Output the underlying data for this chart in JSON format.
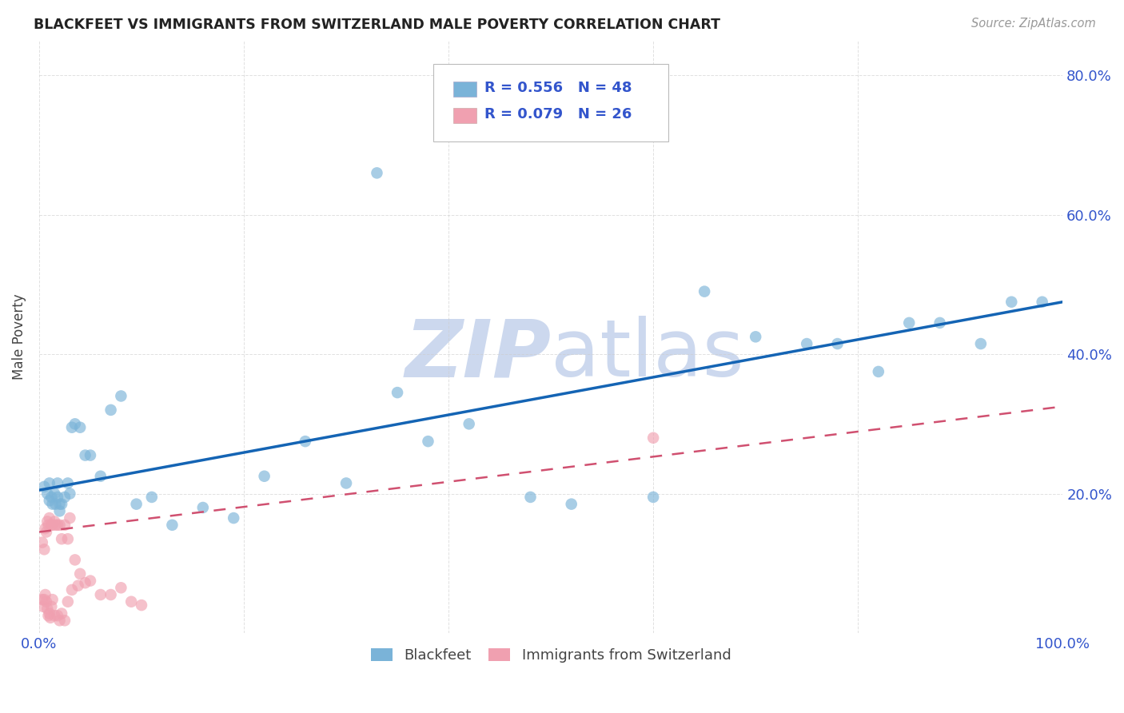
{
  "title": "BLACKFEET VS IMMIGRANTS FROM SWITZERLAND MALE POVERTY CORRELATION CHART",
  "source": "Source: ZipAtlas.com",
  "ylabel": "Male Poverty",
  "xlim": [
    0,
    1.0
  ],
  "ylim": [
    0,
    0.85
  ],
  "xtick_positions": [
    0.0,
    0.2,
    0.4,
    0.6,
    0.8,
    1.0
  ],
  "xticklabels": [
    "0.0%",
    "",
    "",
    "",
    "",
    "100.0%"
  ],
  "ytick_positions": [
    0.0,
    0.2,
    0.4,
    0.6,
    0.8
  ],
  "yticklabels": [
    "",
    "20.0%",
    "40.0%",
    "60.0%",
    "80.0%"
  ],
  "blackfeet_color": "#7ab3d8",
  "swiss_color": "#f0a0b0",
  "blue_line_color": "#1464b4",
  "pink_line_color": "#d05070",
  "blackfeet_R": 0.556,
  "blackfeet_N": 48,
  "swiss_R": 0.079,
  "swiss_N": 26,
  "legend_color": "#3355cc",
  "tick_color": "#3355cc",
  "background_color": "#ffffff",
  "grid_color": "#cccccc",
  "watermark_color": "#ccd8ee",
  "blackfeet_x": [
    0.005,
    0.008,
    0.01,
    0.01,
    0.012,
    0.013,
    0.015,
    0.016,
    0.018,
    0.018,
    0.02,
    0.02,
    0.022,
    0.025,
    0.028,
    0.03,
    0.032,
    0.035,
    0.04,
    0.045,
    0.05,
    0.06,
    0.07,
    0.08,
    0.095,
    0.11,
    0.13,
    0.16,
    0.19,
    0.22,
    0.26,
    0.3,
    0.35,
    0.38,
    0.42,
    0.48,
    0.52,
    0.6,
    0.65,
    0.7,
    0.75,
    0.78,
    0.82,
    0.85,
    0.88,
    0.92,
    0.95,
    0.98
  ],
  "blackfeet_y": [
    0.21,
    0.2,
    0.19,
    0.215,
    0.195,
    0.185,
    0.2,
    0.185,
    0.195,
    0.215,
    0.185,
    0.175,
    0.185,
    0.195,
    0.215,
    0.2,
    0.295,
    0.3,
    0.295,
    0.255,
    0.255,
    0.225,
    0.32,
    0.34,
    0.185,
    0.195,
    0.155,
    0.18,
    0.165,
    0.225,
    0.275,
    0.215,
    0.345,
    0.275,
    0.3,
    0.195,
    0.185,
    0.195,
    0.49,
    0.425,
    0.415,
    0.415,
    0.375,
    0.445,
    0.445,
    0.415,
    0.475,
    0.475
  ],
  "blackfeet_outlier_x": [
    0.33
  ],
  "blackfeet_outlier_y": [
    0.66
  ],
  "swiss_x": [
    0.003,
    0.005,
    0.006,
    0.007,
    0.008,
    0.009,
    0.01,
    0.012,
    0.013,
    0.015,
    0.016,
    0.018,
    0.02,
    0.022,
    0.025,
    0.028,
    0.03,
    0.035,
    0.04,
    0.05,
    0.06,
    0.07,
    0.08,
    0.09,
    0.1,
    0.6
  ],
  "swiss_y": [
    0.13,
    0.12,
    0.15,
    0.145,
    0.16,
    0.155,
    0.165,
    0.155,
    0.155,
    0.16,
    0.155,
    0.155,
    0.155,
    0.135,
    0.155,
    0.135,
    0.165,
    0.105,
    0.085,
    0.075,
    0.055,
    0.055,
    0.065,
    0.045,
    0.04,
    0.28
  ],
  "swiss_low_x": [
    0.003,
    0.004,
    0.005,
    0.006,
    0.007,
    0.008,
    0.009,
    0.01,
    0.011,
    0.012,
    0.013,
    0.015,
    0.018,
    0.02,
    0.022,
    0.025,
    0.028,
    0.032,
    0.038,
    0.045
  ],
  "swiss_low_y": [
    0.048,
    0.038,
    0.048,
    0.055,
    0.045,
    0.035,
    0.025,
    0.028,
    0.022,
    0.038,
    0.048,
    0.025,
    0.025,
    0.018,
    0.028,
    0.018,
    0.045,
    0.062,
    0.068,
    0.072
  ]
}
